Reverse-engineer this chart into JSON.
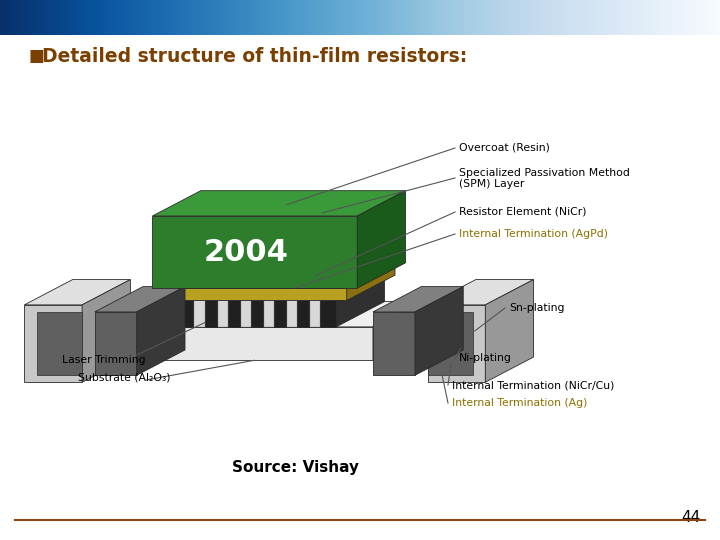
{
  "title": "Detailed structure of thin-film resistors:",
  "title_color": "#7B3F00",
  "title_fontsize": 13.5,
  "bullet_char": "■",
  "source_text": "Source: Vishay",
  "source_fontsize": 11,
  "page_number": "44",
  "bg_color": "#FFFFFF",
  "footer_line_color": "#8B4513",
  "label_fontsize": 7.8,
  "label_color_black": "#000000",
  "label_color_gold": "#8B7000",
  "colors": {
    "green_face": "#2D7D2D",
    "green_side": "#1A5A1A",
    "green_top": "#3A9A3A",
    "gold_face": "#B8A020",
    "gold_side": "#8A7010",
    "gold_top": "#D4B830",
    "white_face": "#E8E8E8",
    "white_side": "#A0A0A0",
    "white_top": "#F0F0F0",
    "dark_face": "#606060",
    "dark_side": "#383838",
    "dark_top": "#808080",
    "med_face": "#909090",
    "med_side": "#686868",
    "med_top": "#B0B0B0",
    "light_face": "#C8C8C8",
    "light_side": "#989898",
    "light_top": "#E0E0E0",
    "black_stripe": "#202020",
    "strip_gold": "#C0A020"
  }
}
